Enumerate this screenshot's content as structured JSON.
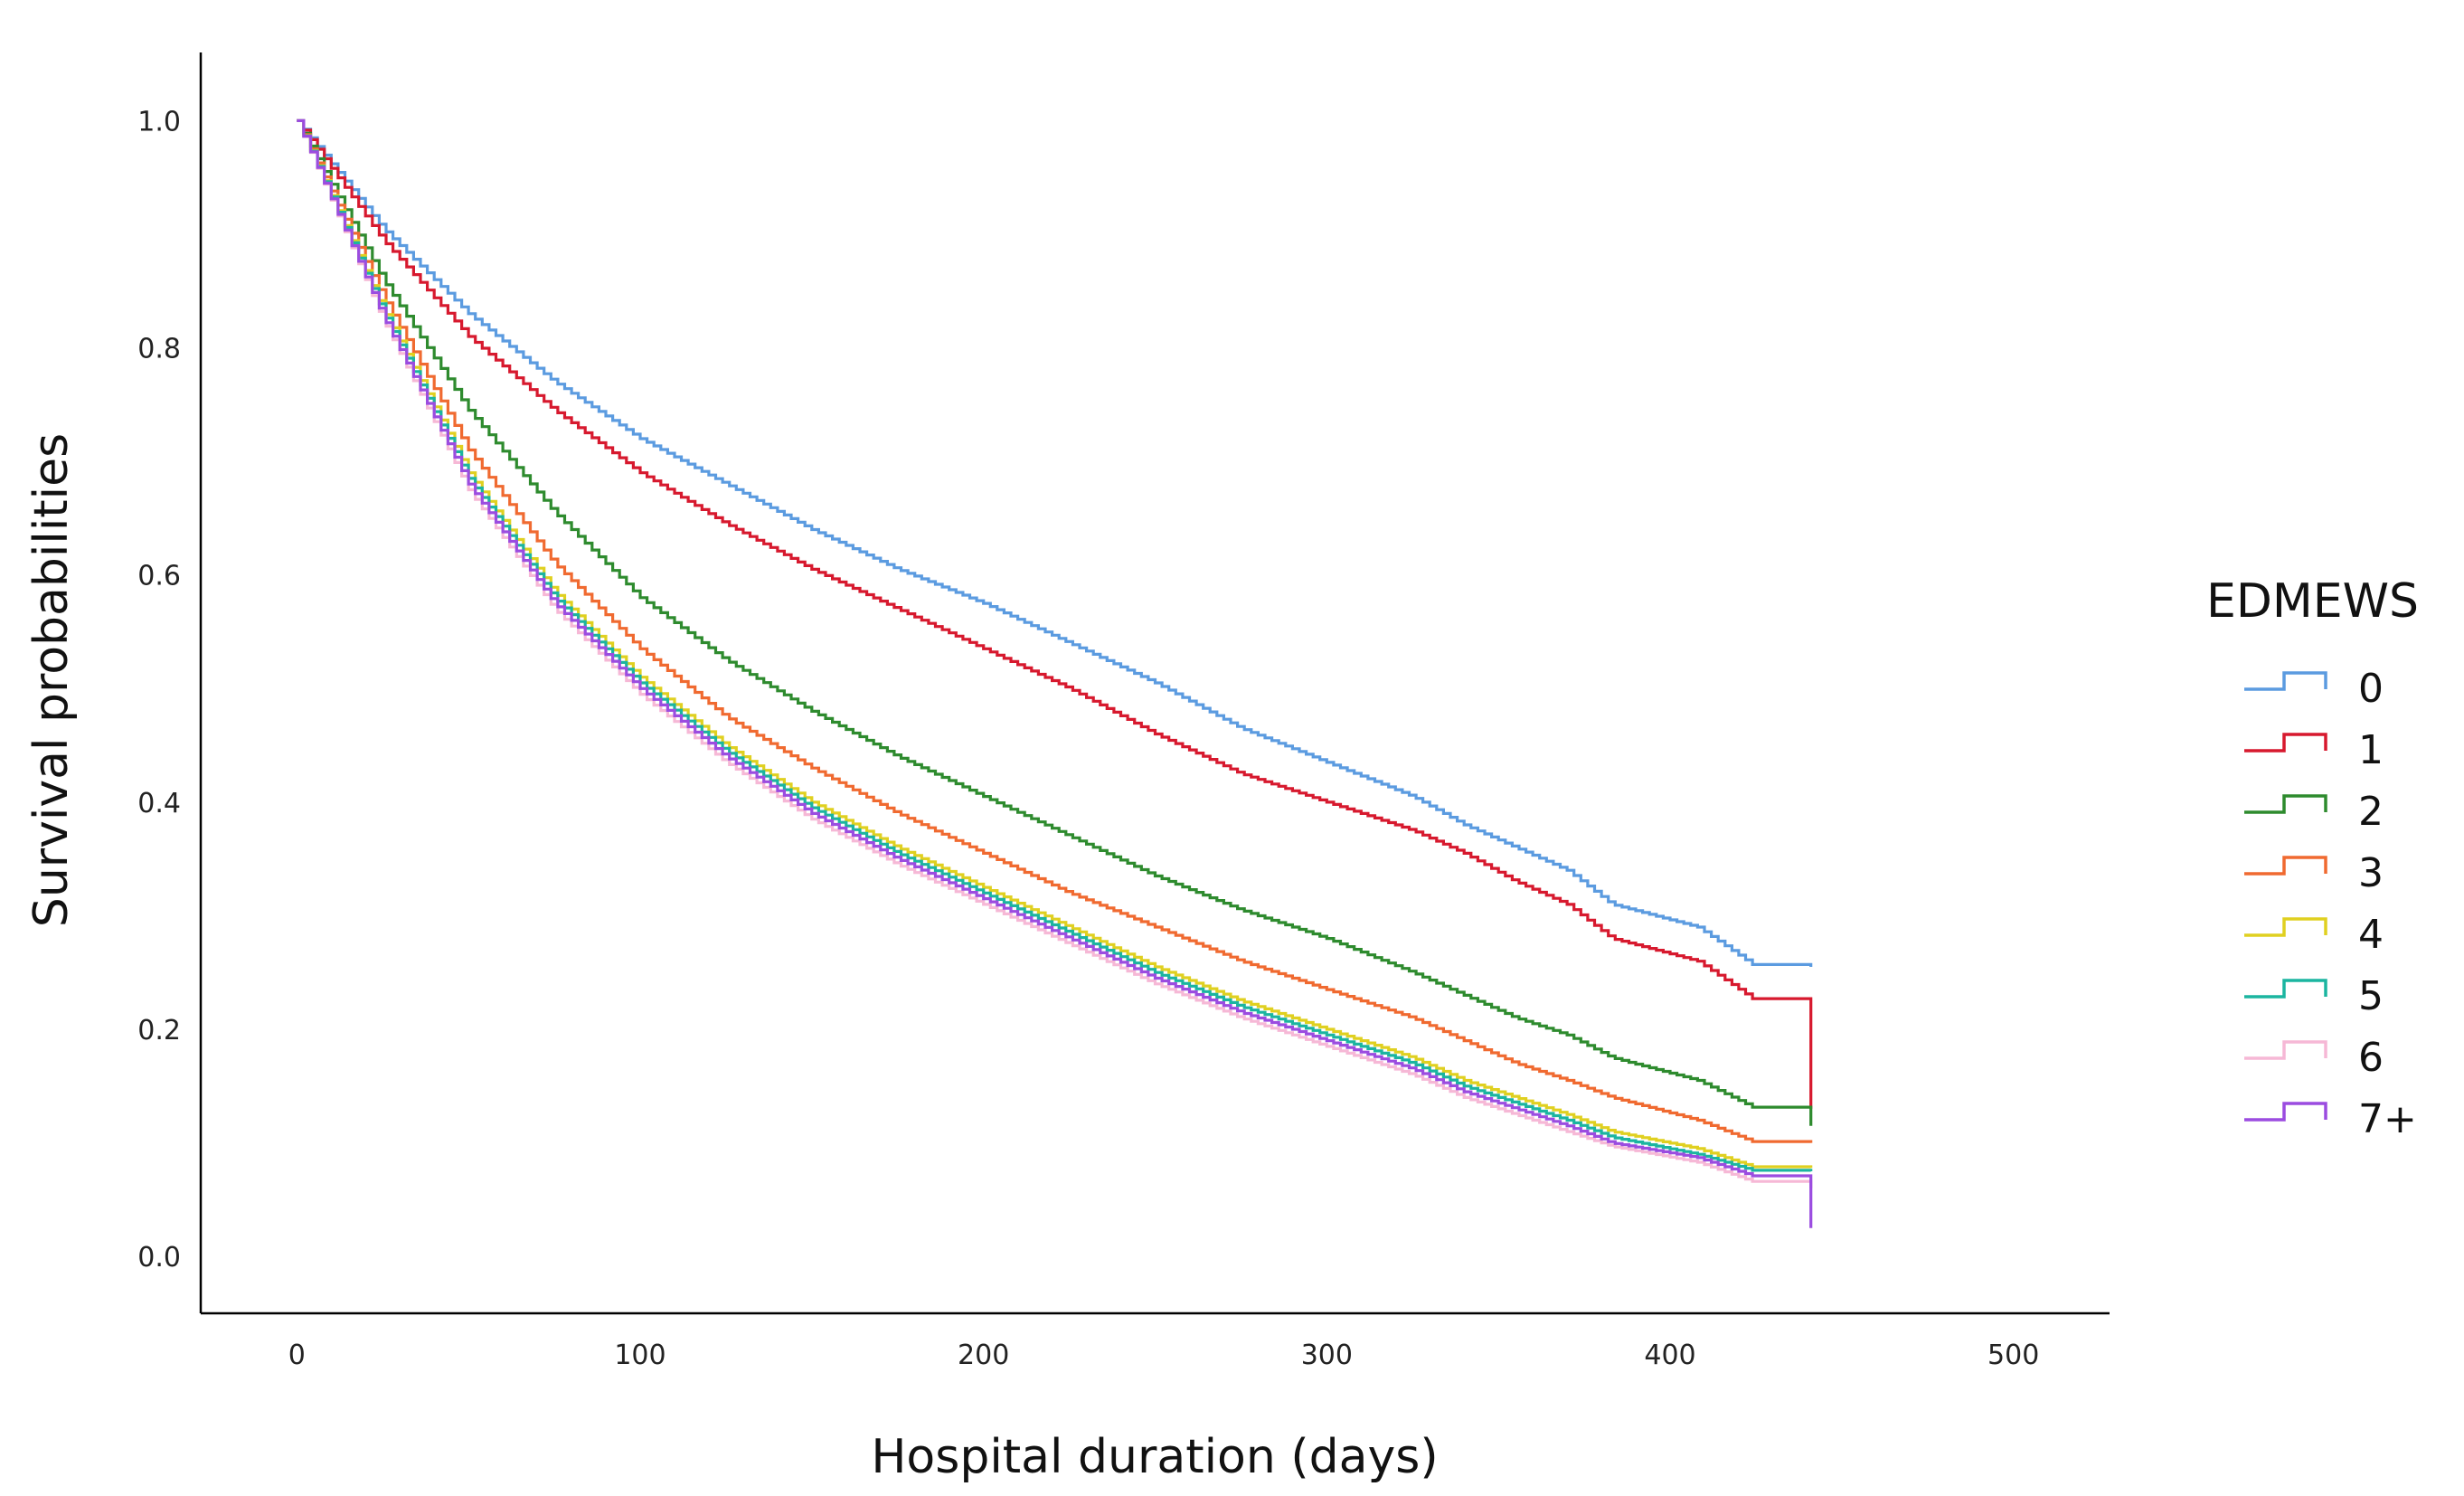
{
  "chart_data": {
    "type": "line",
    "step": true,
    "xlabel": "Hospital duration (days)",
    "ylabel": "Survival probabilities",
    "xlim": [
      -28,
      528
    ],
    "ylim": [
      -0.05,
      1.06
    ],
    "x_ticks": [
      0,
      100,
      200,
      300,
      400,
      500
    ],
    "y_ticks": [
      0.0,
      0.2,
      0.4,
      0.6,
      0.8,
      1.0
    ],
    "x_tick_labels": [
      "0",
      "100",
      "200",
      "300",
      "400",
      "500"
    ],
    "y_tick_labels": [
      "0.0",
      "0.2",
      "0.4",
      "0.6",
      "0.8",
      "1.0"
    ],
    "grid": false,
    "legend": {
      "title": "EDMEWS",
      "position": "right"
    },
    "series": [
      {
        "name": "0",
        "color": "#5B9BE0",
        "x": [
          0,
          25,
          50,
          75,
          100,
          125,
          150,
          175,
          200,
          225,
          250,
          275,
          300,
          325,
          340,
          355,
          370,
          383,
          408,
          425,
          441
        ],
        "y": [
          1.0,
          0.905,
          0.83,
          0.77,
          0.72,
          0.68,
          0.64,
          0.605,
          0.575,
          0.54,
          0.505,
          0.465,
          0.435,
          0.405,
          0.38,
          0.36,
          0.34,
          0.31,
          0.29,
          0.255,
          0.255
        ]
      },
      {
        "name": "1",
        "color": "#D7192E",
        "x": [
          0,
          25,
          50,
          75,
          100,
          125,
          150,
          175,
          200,
          225,
          250,
          275,
          300,
          325,
          340,
          355,
          370,
          383,
          408,
          425,
          441
        ],
        "y": [
          1.0,
          0.895,
          0.81,
          0.745,
          0.69,
          0.645,
          0.605,
          0.57,
          0.535,
          0.5,
          0.46,
          0.425,
          0.4,
          0.375,
          0.355,
          0.33,
          0.31,
          0.28,
          0.26,
          0.225,
          0.13
        ]
      },
      {
        "name": "2",
        "color": "#2E8B2E",
        "x": [
          0,
          25,
          50,
          75,
          100,
          125,
          150,
          175,
          200,
          225,
          250,
          275,
          300,
          325,
          340,
          355,
          370,
          383,
          408,
          425,
          441
        ],
        "y": [
          1.0,
          0.86,
          0.745,
          0.655,
          0.58,
          0.525,
          0.48,
          0.44,
          0.405,
          0.37,
          0.335,
          0.305,
          0.28,
          0.25,
          0.23,
          0.21,
          0.195,
          0.175,
          0.155,
          0.13,
          0.115
        ]
      },
      {
        "name": "3",
        "color": "#F06A30",
        "x": [
          0,
          25,
          50,
          75,
          100,
          125,
          150,
          175,
          200,
          225,
          250,
          275,
          300,
          325,
          340,
          355,
          370,
          383,
          408,
          425,
          441
        ],
        "y": [
          1.0,
          0.845,
          0.71,
          0.61,
          0.535,
          0.475,
          0.43,
          0.39,
          0.355,
          0.32,
          0.29,
          0.26,
          0.235,
          0.21,
          0.19,
          0.17,
          0.155,
          0.14,
          0.12,
          0.1,
          0.1
        ]
      },
      {
        "name": "4",
        "color": "#E0D020",
        "x": [
          0,
          25,
          50,
          75,
          100,
          125,
          150,
          175,
          200,
          225,
          250,
          275,
          300,
          325,
          340,
          355,
          370,
          383,
          408,
          425,
          441
        ],
        "y": [
          1.0,
          0.835,
          0.69,
          0.585,
          0.51,
          0.45,
          0.4,
          0.36,
          0.325,
          0.29,
          0.255,
          0.225,
          0.2,
          0.175,
          0.155,
          0.14,
          0.125,
          0.11,
          0.095,
          0.078,
          0.078
        ]
      },
      {
        "name": "5",
        "color": "#1BB5A0",
        "x": [
          0,
          25,
          50,
          75,
          100,
          125,
          150,
          175,
          200,
          225,
          250,
          275,
          300,
          325,
          340,
          355,
          370,
          383,
          408,
          425,
          441
        ],
        "y": [
          1.0,
          0.832,
          0.685,
          0.58,
          0.505,
          0.445,
          0.395,
          0.355,
          0.32,
          0.285,
          0.25,
          0.22,
          0.195,
          0.17,
          0.15,
          0.135,
          0.12,
          0.105,
          0.09,
          0.075,
          0.075
        ]
      },
      {
        "name": "6",
        "color": "#F6B8D6",
        "x": [
          0,
          25,
          50,
          75,
          100,
          125,
          150,
          175,
          200,
          225,
          250,
          275,
          300,
          325,
          340,
          355,
          370,
          383,
          408,
          425,
          441
        ],
        "y": [
          1.0,
          0.825,
          0.675,
          0.57,
          0.495,
          0.435,
          0.385,
          0.345,
          0.31,
          0.275,
          0.24,
          0.21,
          0.185,
          0.16,
          0.14,
          0.125,
          0.11,
          0.097,
          0.083,
          0.065,
          0.06
        ]
      },
      {
        "name": "7+",
        "color": "#9B4CE0",
        "x": [
          0,
          25,
          50,
          75,
          100,
          125,
          150,
          175,
          200,
          225,
          250,
          275,
          300,
          325,
          340,
          355,
          370,
          383,
          408,
          425,
          441
        ],
        "y": [
          1.0,
          0.828,
          0.68,
          0.575,
          0.5,
          0.44,
          0.39,
          0.35,
          0.315,
          0.28,
          0.245,
          0.215,
          0.19,
          0.165,
          0.145,
          0.13,
          0.115,
          0.1,
          0.087,
          0.07,
          0.025
        ]
      }
    ]
  }
}
